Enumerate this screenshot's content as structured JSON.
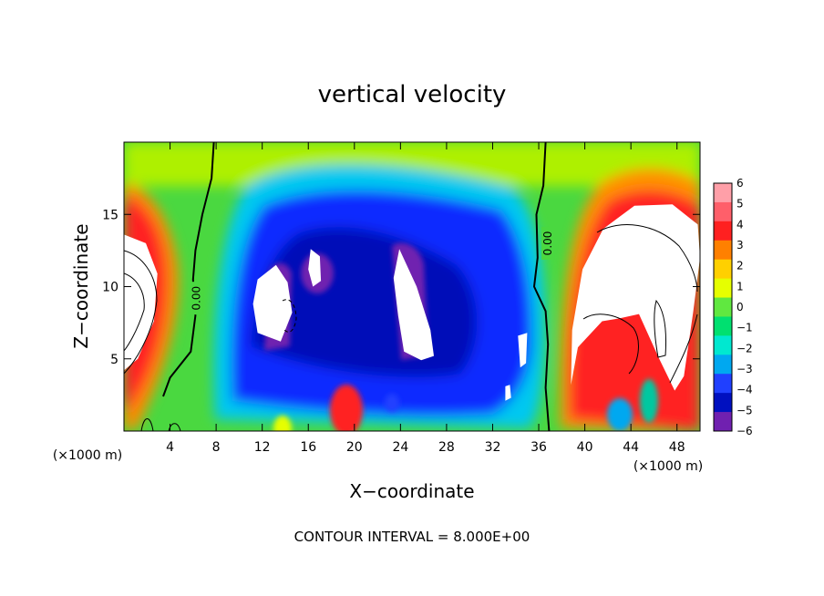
{
  "chart_data": {
    "type": "heatmap",
    "title": "vertical velocity",
    "xlabel": "X−coordinate",
    "ylabel": "Z−coordinate",
    "x_unit": "(×1000 m)",
    "y_unit": "(×1000 m)",
    "xlim": [
      0,
      50
    ],
    "ylim": [
      0,
      20
    ],
    "x_ticks": [
      4,
      8,
      12,
      16,
      20,
      24,
      28,
      32,
      36,
      40,
      44,
      48
    ],
    "y_ticks": [
      5,
      10,
      15
    ],
    "x_tick_labels": [
      "4",
      "8",
      "12",
      "16",
      "20",
      "24",
      "28",
      "32",
      "36",
      "40",
      "44",
      "48"
    ],
    "y_tick_labels": [
      "5",
      "10",
      "15"
    ],
    "colorbar": {
      "levels": [
        6,
        5,
        4,
        3,
        2,
        1,
        0,
        -1,
        -2,
        -3,
        -4,
        -5,
        -6
      ],
      "labels": [
        "6",
        "5",
        "4",
        "3",
        "2",
        "1",
        "0",
        "−1",
        "−2",
        "−3",
        "−4",
        "−5",
        "−6"
      ],
      "colors": [
        "#ff9fa8",
        "#ff5f6a",
        "#ff2020",
        "#ff8000",
        "#ffd000",
        "#e6ff00",
        "#60e840",
        "#00e070",
        "#00e8d0",
        "#00a8f0",
        "#2040ff",
        "#0010c0",
        "#7020b0"
      ]
    },
    "contour_labels": [
      {
        "text": "0.00",
        "x": 6.3,
        "y": 9.2
      },
      {
        "text": "0.00",
        "x": 36.8,
        "y": 13.0
      }
    ],
    "zero_contours": [
      [
        [
          7.8,
          20
        ],
        [
          7.6,
          17.5
        ],
        [
          6.8,
          15
        ],
        [
          6.2,
          12.5
        ],
        [
          6.0,
          10.5
        ],
        [
          6.2,
          8
        ],
        [
          5.8,
          5.5
        ],
        [
          4.0,
          3.7
        ],
        [
          3.4,
          2.4
        ]
      ],
      [
        [
          36.6,
          20
        ],
        [
          36.4,
          17
        ],
        [
          35.8,
          15
        ],
        [
          35.9,
          12
        ],
        [
          35.6,
          10
        ],
        [
          36.6,
          8.3
        ],
        [
          36.8,
          6
        ],
        [
          36.6,
          3
        ],
        [
          36.9,
          0
        ]
      ]
    ],
    "features": [
      {
        "label": "white",
        "shape": [
          [
            11.6,
            10.5
          ],
          [
            13.2,
            11.5
          ],
          [
            14.2,
            10.3
          ],
          [
            14.6,
            8.2
          ],
          [
            13.6,
            6.2
          ],
          [
            11.6,
            6.8
          ],
          [
            11.2,
            8.8
          ]
        ]
      },
      {
        "label": "white",
        "shape": [
          [
            16.2,
            12.6
          ],
          [
            17.0,
            12.1
          ],
          [
            17.1,
            10.4
          ],
          [
            16.4,
            10.0
          ],
          [
            16.0,
            11.2
          ]
        ]
      },
      {
        "label": "white",
        "shape": [
          [
            23.9,
            12.6
          ],
          [
            25.4,
            10.0
          ],
          [
            26.6,
            7.0
          ],
          [
            26.9,
            5.2
          ],
          [
            25.8,
            4.9
          ],
          [
            24.3,
            5.5
          ],
          [
            23.8,
            8.0
          ],
          [
            23.4,
            10.6
          ]
        ]
      },
      {
        "label": "white",
        "shape": [
          [
            34.2,
            6.6
          ],
          [
            35.0,
            6.8
          ],
          [
            34.9,
            4.7
          ],
          [
            34.4,
            4.4
          ]
        ]
      },
      {
        "label": "white",
        "shape": [
          [
            33.1,
            3.1
          ],
          [
            33.5,
            3.2
          ],
          [
            33.6,
            2.3
          ],
          [
            33.1,
            2.1
          ]
        ]
      },
      {
        "label": "white",
        "shape": [
          [
            0,
            13.6
          ],
          [
            1.9,
            13.0
          ],
          [
            2.9,
            10.9
          ],
          [
            2.6,
            7.6
          ],
          [
            1.2,
            5.0
          ],
          [
            0,
            4.2
          ]
        ]
      },
      {
        "label": "white",
        "shape": [
          [
            39.8,
            11.2
          ],
          [
            41.6,
            14.0
          ],
          [
            44.3,
            15.6
          ],
          [
            47.6,
            15.7
          ],
          [
            49.8,
            14.3
          ],
          [
            50,
            12
          ],
          [
            49.4,
            8.2
          ],
          [
            48.6,
            3.8
          ],
          [
            47.8,
            2.8
          ],
          [
            46.4,
            5.1
          ],
          [
            44.7,
            8.1
          ],
          [
            43.0,
            7.8
          ],
          [
            41.5,
            7.6
          ],
          [
            39.4,
            5.8
          ],
          [
            38.8,
            3.2
          ],
          [
            38.9,
            7.0
          ]
        ]
      }
    ],
    "footnote": "CONTOUR INTERVAL = 8.000E+00"
  }
}
